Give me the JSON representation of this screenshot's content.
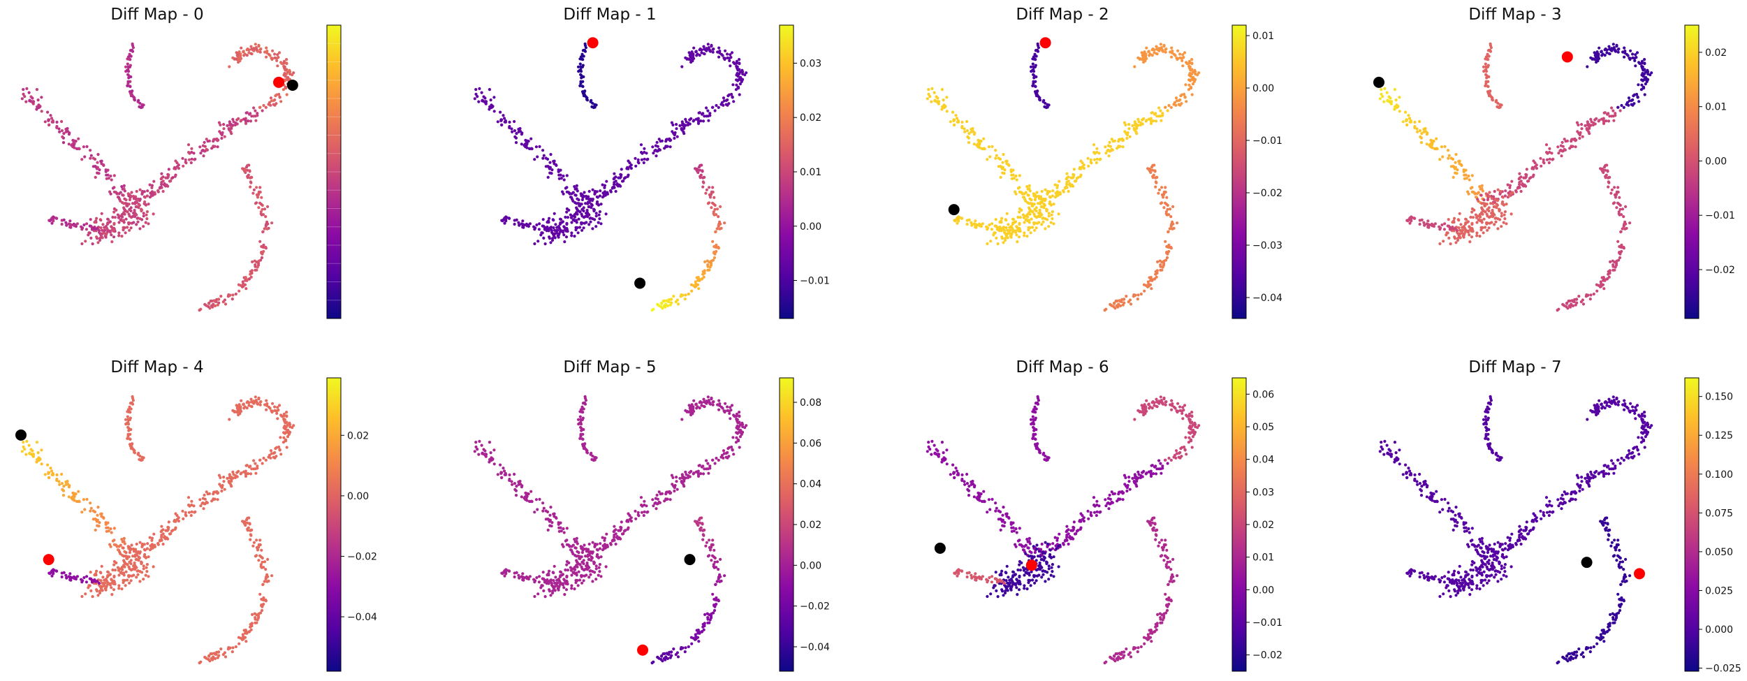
{
  "figure": {
    "colormap": "plasma",
    "colormap_stops": [
      "#0d0887",
      "#5302a3",
      "#8b0aa5",
      "#b83289",
      "#db5c68",
      "#f48849",
      "#febd2a",
      "#f0f921"
    ],
    "start_marker_color": "#ff0000",
    "end_marker_color": "#000000"
  },
  "chart_data": [
    {
      "type": "scatter",
      "title": "Diff Map - 0",
      "colorbar_ticks": [],
      "start_point": [
        0.93,
        0.18
      ],
      "end_point": [
        0.98,
        0.19
      ],
      "layout": "uniform"
    },
    {
      "type": "scatter",
      "title": "Diff Map - 1",
      "colorbar_ticks": [
        "0.03",
        "0.02",
        "0.01",
        "0.00",
        "−0.01"
      ],
      "colorbar_tick_values": [
        0.03,
        0.02,
        0.01,
        0.0,
        -0.01
      ],
      "clim": [
        -0.017,
        0.037
      ],
      "start_point": [
        0.43,
        0.04
      ],
      "end_point": [
        0.6,
        0.89
      ],
      "layout": "map1"
    },
    {
      "type": "scatter",
      "title": "Diff Map - 2",
      "colorbar_ticks": [
        "0.01",
        "0.00",
        "−0.01",
        "−0.02",
        "−0.03",
        "−0.04"
      ],
      "colorbar_tick_values": [
        0.01,
        0.0,
        -0.01,
        -0.02,
        -0.03,
        -0.04
      ],
      "clim": [
        -0.044,
        0.012
      ],
      "start_point": [
        0.43,
        0.04
      ],
      "end_point": [
        0.1,
        0.63
      ],
      "layout": "map2"
    },
    {
      "type": "scatter",
      "title": "Diff Map - 3",
      "colorbar_ticks": [
        "0.02",
        "0.01",
        "0.00",
        "−0.01",
        "−0.02"
      ],
      "colorbar_tick_values": [
        0.02,
        0.01,
        0.0,
        -0.01,
        -0.02
      ],
      "clim": [
        -0.029,
        0.025
      ],
      "start_point": [
        0.68,
        0.09
      ],
      "end_point": [
        0.0,
        0.18
      ],
      "layout": "map3"
    },
    {
      "type": "scatter",
      "title": "Diff Map - 4",
      "colorbar_ticks": [
        "0.02",
        "0.00",
        "−0.02",
        "−0.04"
      ],
      "colorbar_tick_values": [
        0.02,
        0.0,
        -0.02,
        -0.04
      ],
      "clim": [
        -0.058,
        0.039
      ],
      "start_point": [
        0.1,
        0.62
      ],
      "end_point": [
        0.0,
        0.18
      ],
      "layout": "map4"
    },
    {
      "type": "scatter",
      "title": "Diff Map - 5",
      "colorbar_ticks": [
        "0.08",
        "0.06",
        "0.04",
        "0.02",
        "0.00",
        "−0.02",
        "−0.04"
      ],
      "colorbar_tick_values": [
        0.08,
        0.06,
        0.04,
        0.02,
        0.0,
        -0.02,
        -0.04
      ],
      "clim": [
        -0.052,
        0.092
      ],
      "start_point": [
        0.61,
        0.94
      ],
      "end_point": [
        0.78,
        0.62
      ],
      "layout": "map5"
    },
    {
      "type": "scatter",
      "title": "Diff Map - 6",
      "colorbar_ticks": [
        "0.06",
        "0.05",
        "0.04",
        "0.03",
        "0.02",
        "0.01",
        "0.00",
        "−0.01",
        "−0.02"
      ],
      "colorbar_tick_values": [
        0.06,
        0.05,
        0.04,
        0.03,
        0.02,
        0.01,
        0.0,
        -0.01,
        -0.02
      ],
      "clim": [
        -0.025,
        0.065
      ],
      "start_point": [
        0.38,
        0.64
      ],
      "end_point": [
        0.05,
        0.58
      ],
      "layout": "map6"
    },
    {
      "type": "scatter",
      "title": "Diff Map - 7",
      "colorbar_ticks": [
        "0.150",
        "0.125",
        "0.100",
        "0.075",
        "0.050",
        "0.025",
        "0.000",
        "−0.025"
      ],
      "colorbar_tick_values": [
        0.15,
        0.125,
        0.1,
        0.075,
        0.05,
        0.025,
        0.0,
        -0.025
      ],
      "clim": [
        -0.027,
        0.162
      ],
      "start_point": [
        0.94,
        0.67
      ],
      "end_point": [
        0.75,
        0.63
      ],
      "layout": "map7"
    }
  ]
}
